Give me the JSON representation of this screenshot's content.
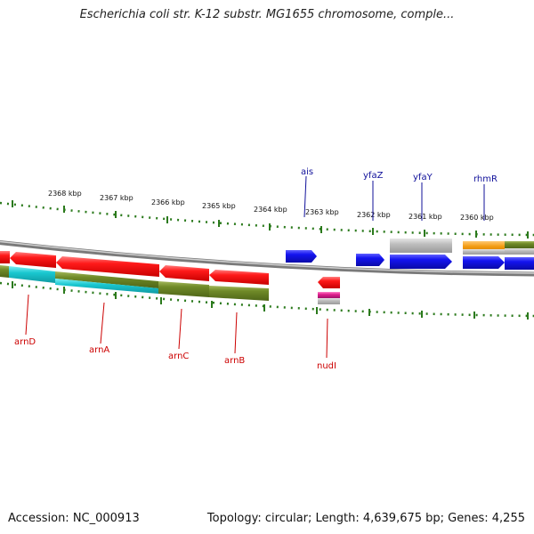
{
  "title": "Escherichia coli str. K-12 substr. MG1655 chromosome, comple...",
  "footer": {
    "accession": "Accession: NC_000913",
    "summary": "Topology: circular; Length: 4,639,675 bp; Genes: 4,255"
  },
  "ruler": {
    "labels": [
      "2368 kbp",
      "2367 kbp",
      "2366 kbp",
      "2365 kbp",
      "2364 kbp",
      "2363 kbp",
      "2362 kbp",
      "2361 kbp",
      "2360 kbp"
    ]
  },
  "genes_top": [
    {
      "name": "ais"
    },
    {
      "name": "yfaZ"
    },
    {
      "name": "yfaY"
    },
    {
      "name": "rhmR"
    }
  ],
  "genes_bottom": [
    {
      "name": "arnD"
    },
    {
      "name": "arnA"
    },
    {
      "name": "arnC"
    },
    {
      "name": "arnB"
    },
    {
      "name": "nudI"
    }
  ],
  "colors": {
    "forward_gene": "#1a10e8",
    "reverse_gene": "#f21010",
    "top_label": "#10109a",
    "bottom_label": "#cc0000",
    "tick": "#2b7a1c",
    "backbone": "#8c8c8c",
    "olive": "#6e8a28",
    "cyan": "#19c7d0",
    "orange": "#f29a10",
    "magenta": "#e0208e",
    "gray": "#b9b9b9"
  }
}
